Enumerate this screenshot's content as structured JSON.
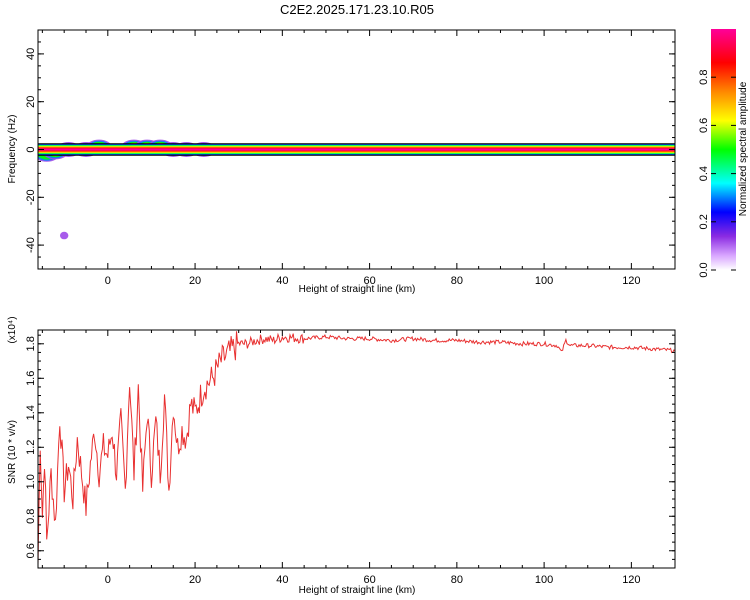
{
  "title": "C2E2.2025.171.23.10.R05",
  "chart_data": [
    {
      "type": "heatmap",
      "xlabel": "Height of straight line (km)",
      "ylabel": "Frequency (Hz)",
      "xlim": [
        -16,
        130
      ],
      "ylim": [
        -50,
        50
      ],
      "xticks": [
        0,
        20,
        40,
        60,
        80,
        100,
        120
      ],
      "yticks": [
        -40,
        -20,
        0,
        20,
        40
      ],
      "colorbar": {
        "label": "Normalized spectral amplitude",
        "range": [
          0.0,
          1.0
        ],
        "ticks": [
          "0.0",
          "0.2",
          "0.4",
          "0.6",
          "0.8"
        ],
        "colors": [
          "#ffffff",
          "#cc66ff",
          "#0000ff",
          "#00ffff",
          "#00ff00",
          "#ffff00",
          "#ff8800",
          "#ff0000",
          "#ff0099"
        ]
      },
      "band": {
        "frequency_hz": 0,
        "half_width_hz": 1.5,
        "x_start_km": -16,
        "x_end_km": 130,
        "amplitude": 1.0
      },
      "blobs": [
        {
          "x_km": -14,
          "freq_hz": -2,
          "amplitude": 0.45
        },
        {
          "x_km": -12,
          "freq_hz": -1,
          "amplitude": 0.9
        },
        {
          "x_km": -9,
          "freq_hz": 0,
          "amplitude": 0.6
        },
        {
          "x_km": -5,
          "freq_hz": 0,
          "amplitude": 0.85
        },
        {
          "x_km": -2,
          "freq_hz": 1,
          "amplitude": 0.5
        },
        {
          "x_km": 6,
          "freq_hz": 1,
          "amplitude": 0.9
        },
        {
          "x_km": 9,
          "freq_hz": 1,
          "amplitude": 0.85
        },
        {
          "x_km": 12,
          "freq_hz": 1,
          "amplitude": 0.9
        },
        {
          "x_km": 15,
          "freq_hz": 0,
          "amplitude": 0.8
        },
        {
          "x_km": 18,
          "freq_hz": 0,
          "amplitude": 0.35
        },
        {
          "x_km": 22,
          "freq_hz": 0,
          "amplitude": 0.25
        },
        {
          "x_km": -10,
          "freq_hz": -36,
          "amplitude": 0.1
        }
      ]
    },
    {
      "type": "line",
      "xlabel": "Height of straight line (km)",
      "ylabel": "SNR (10 * v/v)",
      "yscale_label": "(x10⁴)",
      "xlim": [
        -16,
        130
      ],
      "ylim": [
        0.5,
        1.88
      ],
      "xticks": [
        0,
        20,
        40,
        60,
        80,
        100,
        120
      ],
      "yticks": [
        "0.6",
        "0.8",
        "1.0",
        "1.2",
        "1.4",
        "1.6",
        "1.8"
      ],
      "series": [
        {
          "color": "#e83030",
          "x": [
            -16,
            -15.5,
            -15,
            -14.5,
            -14,
            -13,
            -12,
            -11,
            -10,
            -9,
            -8,
            -7,
            -6,
            -5,
            -4,
            -3,
            -2,
            -1,
            0,
            1,
            2,
            3,
            4,
            5,
            6,
            7,
            8,
            9,
            10,
            11,
            12,
            13,
            14,
            15,
            16,
            17,
            18,
            19,
            20,
            22,
            24,
            26,
            28,
            30,
            32,
            34,
            36,
            38,
            40,
            45,
            50,
            55,
            60,
            65,
            70,
            75,
            80,
            85,
            90,
            95,
            100,
            103,
            104,
            105,
            106,
            110,
            115,
            120,
            125,
            130
          ],
          "values": [
            0.52,
            1.25,
            0.8,
            1.15,
            0.65,
            1.05,
            0.75,
            1.38,
            0.95,
            1.1,
            0.9,
            1.25,
            1.05,
            0.85,
            1.1,
            1.3,
            1.05,
            1.2,
            1.15,
            1.3,
            1.05,
            1.35,
            0.95,
            1.6,
            1.05,
            1.55,
            0.95,
            1.4,
            1.05,
            1.35,
            1.05,
            1.5,
            0.95,
            1.45,
            1.2,
            1.3,
            1.25,
            1.45,
            1.4,
            1.55,
            1.6,
            1.7,
            1.75,
            1.8,
            1.8,
            1.82,
            1.83,
            1.82,
            1.84,
            1.83,
            1.84,
            1.83,
            1.83,
            1.82,
            1.83,
            1.82,
            1.82,
            1.81,
            1.81,
            1.8,
            1.8,
            1.79,
            1.75,
            1.82,
            1.79,
            1.79,
            1.78,
            1.78,
            1.77,
            1.76
          ]
        }
      ]
    }
  ]
}
